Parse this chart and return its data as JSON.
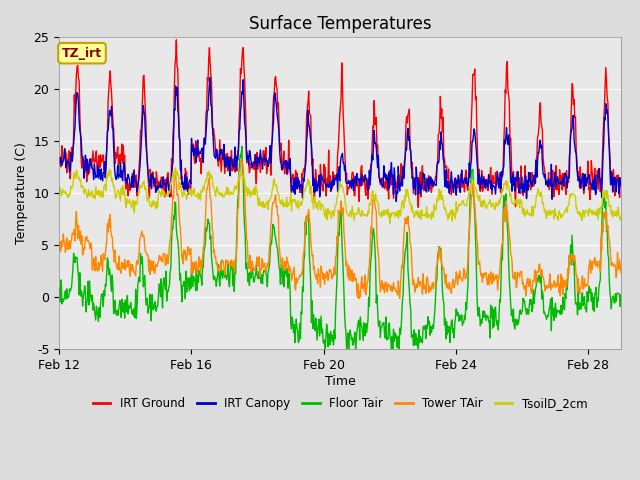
{
  "title": "Surface Temperatures",
  "xlabel": "Time",
  "ylabel": "Temperature (C)",
  "ylim": [
    -5,
    25
  ],
  "xlim": [
    0,
    17
  ],
  "xtick_positions": [
    0,
    4,
    8,
    12,
    16
  ],
  "xtick_labels": [
    "Feb 12",
    "Feb 16",
    "Feb 20",
    "Feb 24",
    "Feb 28"
  ],
  "ytick_positions": [
    -5,
    0,
    5,
    10,
    15,
    20,
    25
  ],
  "background_color": "#dcdcdc",
  "plot_bg_color": "#e8e8e8",
  "annotation_text": "TZ_irt",
  "annotation_color": "#8b0000",
  "annotation_bg": "#ffff99",
  "annotation_border": "#c8a000",
  "series_colors": {
    "IRT Ground": "#ff0000",
    "IRT Canopy": "#0000cc",
    "Floor Tair": "#00bb00",
    "Tower TAir": "#ff8800",
    "TsoilD_2cm": "#cccc00"
  },
  "legend_entries": [
    "IRT Ground",
    "IRT Canopy",
    "Floor Tair",
    "Tower TAir",
    "TsoilD_2cm"
  ]
}
